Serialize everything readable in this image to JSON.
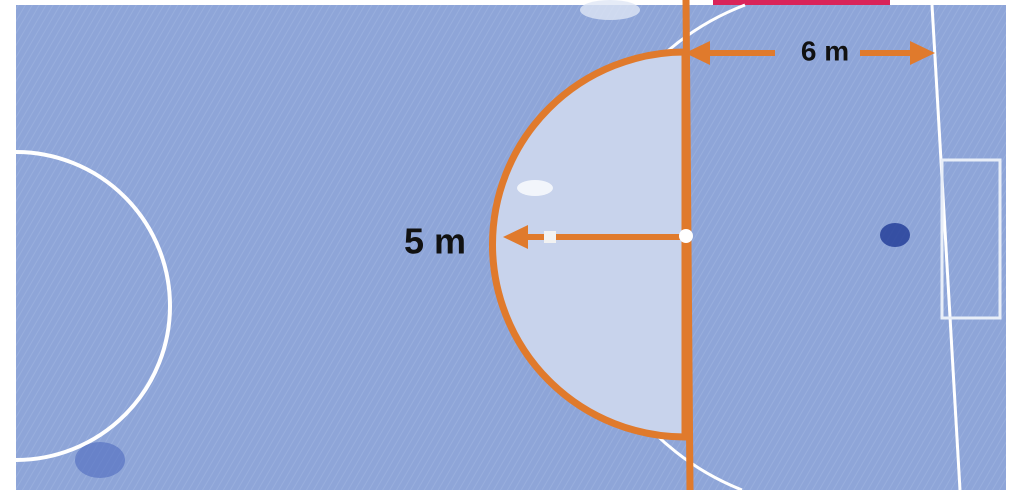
{
  "labels": {
    "top": "6 m",
    "left": "5 m"
  }
}
